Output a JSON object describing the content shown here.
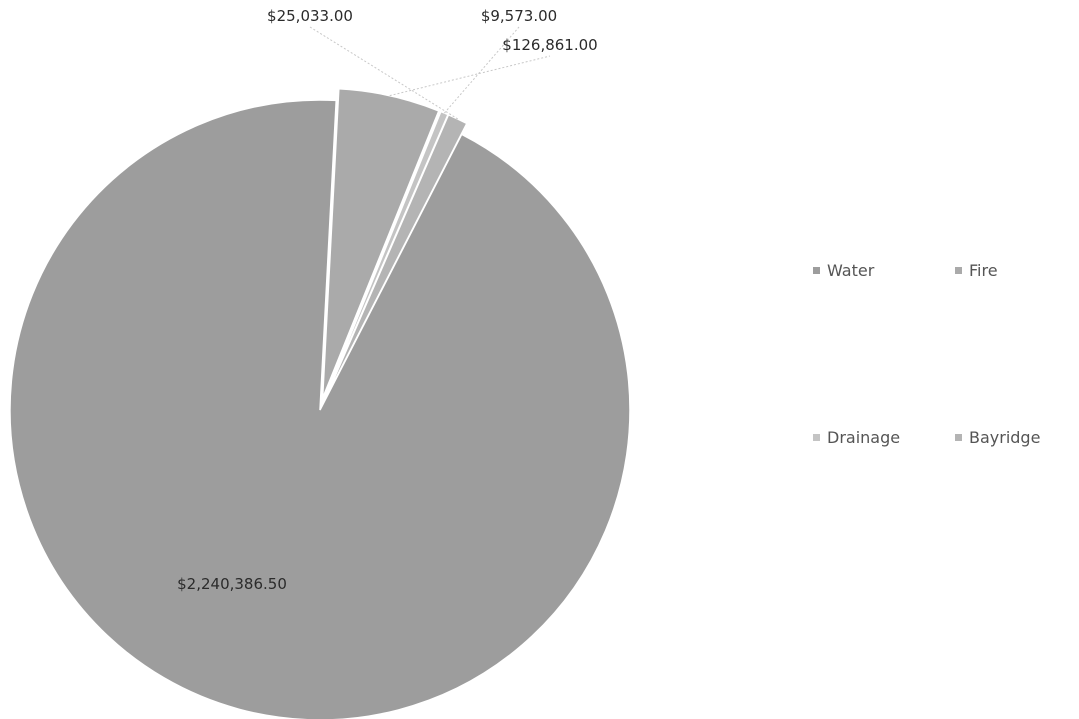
{
  "chart_data": {
    "type": "pie",
    "title": "",
    "legend_position": "right",
    "series": [
      {
        "name": "Water",
        "value": 2240386.5,
        "label": "$2,240,386.50",
        "color": "#9d9d9d"
      },
      {
        "name": "Fire",
        "value": 126861.0,
        "label": "$126,861.00",
        "color": "#aaaaaa"
      },
      {
        "name": "Drainage",
        "value": 9573.0,
        "label": "$9,573.00",
        "color": "#c4c4c4"
      },
      {
        "name": "Bayridge",
        "value": 25033.0,
        "label": "$25,033.00",
        "color": "#b4b4b4"
      }
    ]
  }
}
